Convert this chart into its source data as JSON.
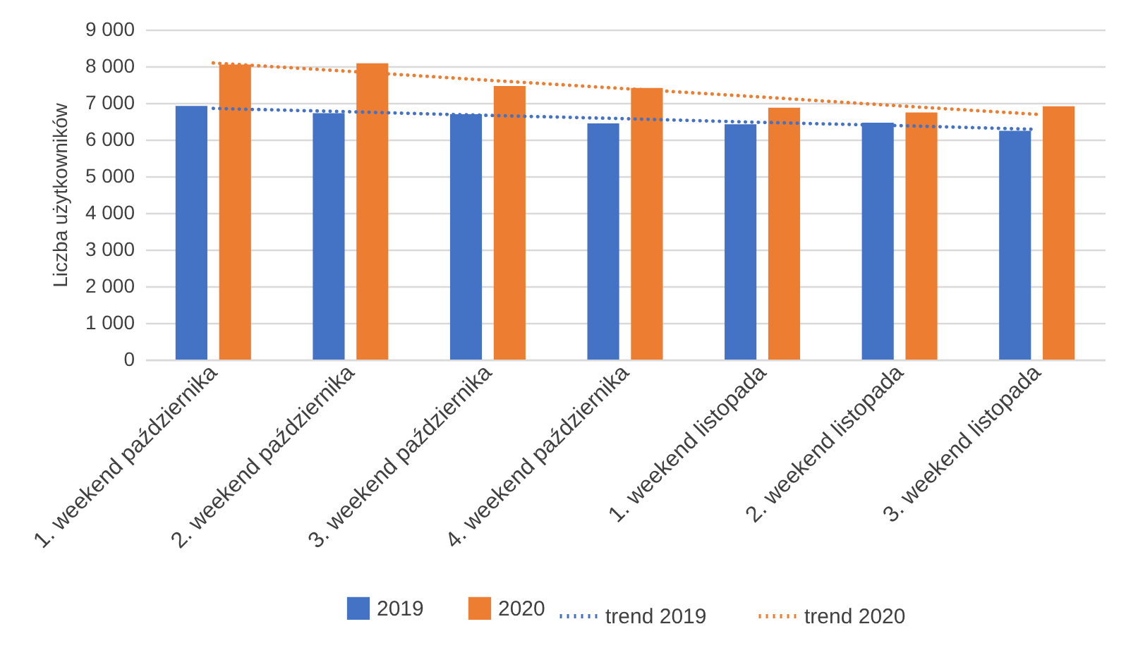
{
  "chart_data": {
    "type": "bar",
    "ylabel": "Liczba użytkowników",
    "categories": [
      "1. weekend października",
      "2. weekend października",
      "3. weekend października",
      "4. weekend października",
      "1. weekend listopada",
      "2. weekend listopada",
      "3. weekend listopada"
    ],
    "series": [
      {
        "name": "2019",
        "color": "#4472c4",
        "values": [
          6920,
          6720,
          6690,
          6440,
          6420,
          6460,
          6240
        ]
      },
      {
        "name": "2020",
        "color": "#ed7d31",
        "values": [
          8050,
          8080,
          7460,
          7410,
          6870,
          6740,
          6910
        ]
      },
      {
        "name": "trend 2019",
        "type": "line",
        "line_style": "dotted",
        "color": "#4472c4",
        "values": [
          6850,
          6760,
          6660,
          6570,
          6470,
          6380,
          6280
        ]
      },
      {
        "name": "trend 2020",
        "type": "line",
        "line_style": "dotted",
        "color": "#ed7d31",
        "values": [
          8090,
          7860,
          7620,
          7390,
          7160,
          6920,
          6690
        ]
      }
    ],
    "ylim": [
      0,
      9000
    ],
    "yticks": [
      0,
      {
        "value": 1000,
        "label": "1 000"
      },
      {
        "value": 2000,
        "label": "2 000"
      },
      {
        "value": 3000,
        "label": "3 000"
      },
      {
        "value": 4000,
        "label": "4 000"
      },
      {
        "value": 5000,
        "label": "5 000"
      },
      {
        "value": 6000,
        "label": "6 000"
      },
      {
        "value": 7000,
        "label": "7 000"
      },
      {
        "value": 8000,
        "label": "8 000"
      },
      {
        "value": 9000,
        "label": "9 000"
      }
    ],
    "grid": "y",
    "legend": "bottom",
    "marker": "none"
  }
}
